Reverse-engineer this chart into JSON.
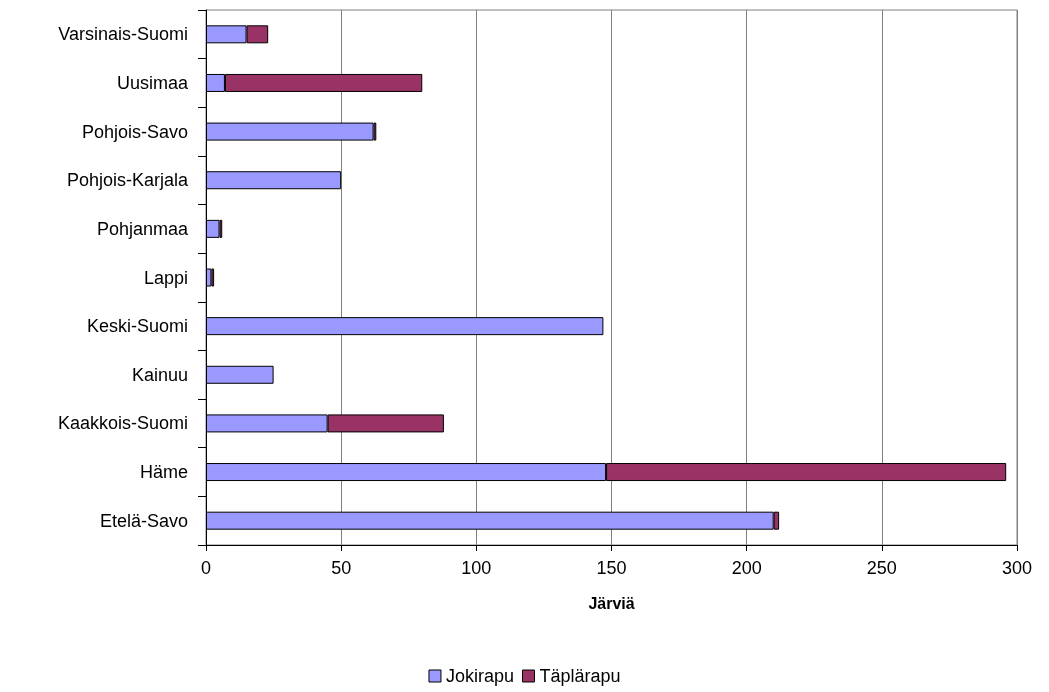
{
  "chart_data": {
    "type": "bar",
    "orientation": "horizontal",
    "stacked": true,
    "categories": [
      "Varsinais-Suomi",
      "Uusimaa",
      "Pohjois-Savo",
      "Pohjois-Karjala",
      "Pohjanmaa",
      "Lappi",
      "Keski-Suomi",
      "Kainuu",
      "Kaakkois-Suomi",
      "Häme",
      "Etelä-Savo"
    ],
    "series": [
      {
        "name": "Jokirapu",
        "color": "#9999ff",
        "values": [
          15,
          7,
          62,
          50,
          5,
          2,
          147,
          25,
          45,
          148,
          210
        ]
      },
      {
        "name": "Täplärapu",
        "color": "#993366",
        "values": [
          8,
          73,
          1,
          null,
          1,
          1,
          null,
          null,
          43,
          148,
          2
        ]
      }
    ],
    "xlabel": "Järviä",
    "xlim": [
      0,
      300
    ],
    "xticks": [
      0,
      50,
      100,
      150,
      200,
      250,
      300
    ],
    "grid": "x",
    "legend": "bottom"
  }
}
